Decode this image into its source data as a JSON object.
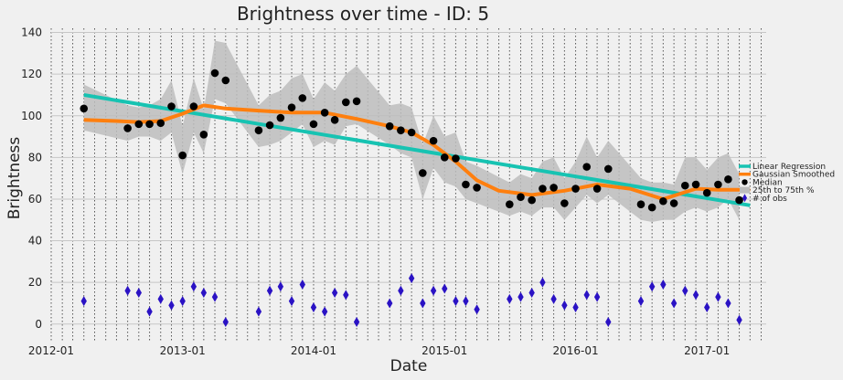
{
  "chart_data": {
    "type": "line",
    "title": "Brightness over time - ID: 5",
    "xlabel": "Date",
    "ylabel": "Brightness",
    "x_tick_labels": [
      "2012-01",
      "2013-01",
      "2014-01",
      "2015-01",
      "2016-01",
      "2017-01"
    ],
    "x_tick_dates": [
      "2012-01-01",
      "2013-01-01",
      "2014-01-01",
      "2015-01-01",
      "2016-01-01",
      "2017-01-01"
    ],
    "xlim": [
      "2012-01-01",
      "2017-06-15"
    ],
    "ylim": [
      -8,
      142
    ],
    "y_ticks": [
      0,
      20,
      40,
      60,
      80,
      100,
      120,
      140
    ],
    "legend": {
      "position": "right",
      "entries": [
        "Linear Regression",
        "Gaussian Smoothed",
        "Median",
        "25th to 75th %",
        "# of obs"
      ]
    },
    "colors": {
      "regression": "#17c3b2",
      "smoothed": "#ff7f0e",
      "median": "#000000",
      "band": "#bdbdbd",
      "obs": "#2a12c4"
    },
    "series": {
      "linear_regression": {
        "name": "Linear Regression",
        "dates": [
          "2012-04-01",
          "2017-05-01"
        ],
        "values": [
          110,
          57
        ]
      },
      "gaussian_smoothed": {
        "name": "Gaussian Smoothed",
        "dates": [
          "2012-04-01",
          "2012-07-01",
          "2012-09-01",
          "2012-11-01",
          "2013-01-01",
          "2013-03-01",
          "2013-05-01",
          "2013-08-01",
          "2013-11-01",
          "2014-02-01",
          "2014-05-01",
          "2014-08-01",
          "2014-10-01",
          "2014-12-01",
          "2015-02-01",
          "2015-04-01",
          "2015-06-01",
          "2015-09-01",
          "2015-12-01",
          "2016-03-01",
          "2016-06-01",
          "2016-09-01",
          "2016-12-01",
          "2017-02-01",
          "2017-05-01"
        ],
        "values": [
          98,
          97.5,
          97,
          97.5,
          101,
          105,
          103.5,
          102.5,
          101.5,
          101.5,
          98.5,
          95,
          92,
          86,
          78,
          69,
          64,
          62,
          64,
          67,
          65,
          60,
          65,
          64.5,
          64.5
        ]
      },
      "median": {
        "name": "Median",
        "dates": [
          "2012-04-01",
          "2012-08-01",
          "2012-09-01",
          "2012-10-01",
          "2012-11-01",
          "2012-12-01",
          "2013-01-01",
          "2013-02-01",
          "2013-03-01",
          "2013-04-01",
          "2013-05-01",
          "2013-08-01",
          "2013-09-01",
          "2013-10-01",
          "2013-11-01",
          "2013-12-01",
          "2014-01-01",
          "2014-02-01",
          "2014-03-01",
          "2014-04-01",
          "2014-05-01",
          "2014-08-01",
          "2014-09-01",
          "2014-10-01",
          "2014-11-01",
          "2014-12-01",
          "2015-01-01",
          "2015-02-01",
          "2015-03-01",
          "2015-04-01",
          "2015-07-01",
          "2015-08-01",
          "2015-09-01",
          "2015-10-01",
          "2015-11-01",
          "2015-12-01",
          "2016-01-01",
          "2016-02-01",
          "2016-03-01",
          "2016-04-01",
          "2016-07-01",
          "2016-08-01",
          "2016-09-01",
          "2016-10-01",
          "2016-11-01",
          "2016-12-01",
          "2017-01-01",
          "2017-02-01",
          "2017-03-01",
          "2017-04-01"
        ],
        "values": [
          103.5,
          94,
          96,
          96,
          96.5,
          104.5,
          81,
          104.5,
          91,
          120.5,
          117,
          93,
          95.5,
          99,
          104,
          108.5,
          96,
          101.5,
          98,
          106.5,
          107,
          95,
          93,
          92,
          72.5,
          88,
          80,
          79.5,
          67,
          65.5,
          57.5,
          61,
          59.5,
          65,
          65.5,
          58,
          65,
          75.5,
          65,
          74.5,
          57.5,
          56,
          59,
          58,
          66.5,
          67,
          63,
          67,
          69.5,
          59.5
        ]
      },
      "iqr_band": {
        "name": "25th to 75th %",
        "dates": [
          "2012-04-01",
          "2012-08-01",
          "2012-09-01",
          "2012-10-01",
          "2012-11-01",
          "2012-12-01",
          "2013-01-01",
          "2013-02-01",
          "2013-03-01",
          "2013-04-01",
          "2013-05-01",
          "2013-08-01",
          "2013-09-01",
          "2013-10-01",
          "2013-11-01",
          "2013-12-01",
          "2014-01-01",
          "2014-02-01",
          "2014-03-01",
          "2014-04-01",
          "2014-05-01",
          "2014-08-01",
          "2014-09-01",
          "2014-10-01",
          "2014-11-01",
          "2014-12-01",
          "2015-01-01",
          "2015-02-01",
          "2015-03-01",
          "2015-04-01",
          "2015-07-01",
          "2015-08-01",
          "2015-09-01",
          "2015-10-01",
          "2015-11-01",
          "2015-12-01",
          "2016-01-01",
          "2016-02-01",
          "2016-03-01",
          "2016-04-01",
          "2016-07-01",
          "2016-08-01",
          "2016-09-01",
          "2016-10-01",
          "2016-11-01",
          "2016-12-01",
          "2017-01-01",
          "2017-02-01",
          "2017-03-01",
          "2017-04-01"
        ],
        "lower": [
          93,
          88,
          90,
          90,
          88,
          92,
          72,
          92,
          82,
          108,
          106,
          85,
          86,
          88,
          92,
          96,
          85,
          88,
          86,
          95,
          96,
          86,
          82,
          80,
          60,
          75,
          68,
          66,
          60,
          58,
          52,
          54,
          52,
          56,
          56,
          50,
          56,
          62,
          58,
          62,
          50,
          49,
          50,
          50,
          54,
          56,
          54,
          56,
          60,
          50
        ],
        "upper": [
          115,
          105,
          104,
          105,
          108,
          117,
          95,
          118,
          103,
          136,
          135,
          105,
          110,
          112,
          118,
          120,
          108,
          116,
          112,
          120,
          124,
          105,
          106,
          104,
          86,
          100,
          90,
          92,
          78,
          76,
          68,
          72,
          70,
          78,
          80,
          70,
          78,
          90,
          80,
          88,
          70,
          68,
          68,
          67,
          80,
          80,
          74,
          80,
          82,
          72
        ]
      },
      "obs": {
        "name": "# of obs",
        "dates": [
          "2012-04-01",
          "2012-08-01",
          "2012-09-01",
          "2012-10-01",
          "2012-11-01",
          "2012-12-01",
          "2013-01-01",
          "2013-02-01",
          "2013-03-01",
          "2013-04-01",
          "2013-05-01",
          "2013-08-01",
          "2013-09-01",
          "2013-10-01",
          "2013-11-01",
          "2013-12-01",
          "2014-01-01",
          "2014-02-01",
          "2014-03-01",
          "2014-04-01",
          "2014-05-01",
          "2014-08-01",
          "2014-09-01",
          "2014-10-01",
          "2014-11-01",
          "2014-12-01",
          "2015-01-01",
          "2015-02-01",
          "2015-03-01",
          "2015-04-01",
          "2015-07-01",
          "2015-08-01",
          "2015-09-01",
          "2015-10-01",
          "2015-11-01",
          "2015-12-01",
          "2016-01-01",
          "2016-02-01",
          "2016-03-01",
          "2016-04-01",
          "2016-07-01",
          "2016-08-01",
          "2016-09-01",
          "2016-10-01",
          "2016-11-01",
          "2016-12-01",
          "2017-01-01",
          "2017-02-01",
          "2017-03-01",
          "2017-04-01"
        ],
        "values": [
          11,
          16,
          15,
          6,
          12,
          9,
          11,
          18,
          15,
          13,
          1,
          6,
          16,
          18,
          11,
          19,
          8,
          6,
          15,
          14,
          1,
          10,
          16,
          22,
          10,
          16,
          17,
          11,
          11,
          7,
          12,
          13,
          15,
          20,
          12,
          9,
          8,
          14,
          13,
          1,
          11,
          18,
          19,
          10,
          16,
          14,
          8,
          13,
          10,
          2
        ]
      }
    }
  }
}
